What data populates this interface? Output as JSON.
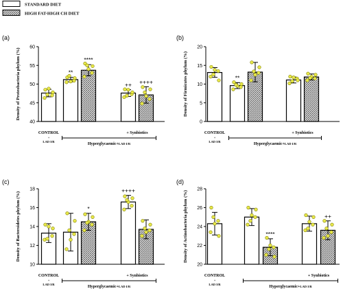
{
  "legend": {
    "items": [
      {
        "label": "STANDARD DIET",
        "pattern": "plain"
      },
      {
        "label": "HIGH FAT-HIGH CH DIET",
        "pattern": "hatch"
      }
    ]
  },
  "group_labels": {
    "control_line1": "CONTROL",
    "control_plus": "+",
    "control_line2": "LAD I/R",
    "hyper": "Hyperglycaemic+",
    "hyper_suffix": "LAD I/R",
    "synbiotics": "+ Synbiotics"
  },
  "colors": {
    "bar_fill": "#ffffff",
    "bar_stroke": "#000000",
    "hatch": "#444444",
    "dot_fill": "#e8e84a",
    "dot_stroke": "#808000"
  },
  "chart_data": [
    {
      "panel": "(a)",
      "type": "bar",
      "ylabel": "Density of Proteobacteria phylum (%)",
      "ylim": [
        40,
        60
      ],
      "yticks": [
        40,
        45,
        50,
        55,
        60
      ],
      "bars": [
        {
          "diet": "standard",
          "value": 47.6,
          "error": 1.0,
          "sig": ""
        },
        {
          "diet": "standard",
          "value": 51.2,
          "error": 0.6,
          "sig": "**"
        },
        {
          "diet": "high_fat",
          "value": 53.7,
          "error": 1.5,
          "sig": "****"
        },
        {
          "diet": "standard",
          "value": 47.6,
          "error": 0.9,
          "sig": "++"
        },
        {
          "diet": "high_fat",
          "value": 47.1,
          "error": 2.2,
          "sig": "++++"
        }
      ],
      "points": [
        [
          48.5,
          47.0,
          46.3,
          47.8,
          48.8,
          47.2
        ],
        [
          51.8,
          50.9,
          50.5,
          51.6,
          50.7,
          52.2
        ],
        [
          55.5,
          53.0,
          52.0,
          54.8,
          54.0,
          55.0
        ],
        [
          48.6,
          47.3,
          46.5,
          47.8,
          48.5,
          46.9
        ],
        [
          49.2,
          46.0,
          44.8,
          48.6,
          46.8,
          47.8
        ]
      ]
    },
    {
      "panel": "(b)",
      "type": "bar",
      "ylabel": "Density of Firmicutes phylum (%)",
      "ylim": [
        0,
        20
      ],
      "yticks": [
        0,
        5,
        10,
        15,
        20
      ],
      "bars": [
        {
          "diet": "standard",
          "value": 13.1,
          "error": 1.3,
          "sig": ""
        },
        {
          "diet": "standard",
          "value": 9.6,
          "error": 0.8,
          "sig": "**"
        },
        {
          "diet": "high_fat",
          "value": 13.2,
          "error": 2.6,
          "sig": ""
        },
        {
          "diet": "standard",
          "value": 11.1,
          "error": 0.8,
          "sig": ""
        },
        {
          "diet": "high_fat",
          "value": 11.9,
          "error": 0.8,
          "sig": ""
        }
      ],
      "points": [
        [
          14.6,
          13.5,
          12.0,
          11.0,
          13.8,
          12.6
        ],
        [
          10.5,
          9.2,
          8.6,
          10.0,
          9.5,
          9.8
        ],
        [
          15.8,
          13.0,
          11.0,
          14.5,
          12.5,
          13.4
        ],
        [
          12.0,
          11.5,
          10.2,
          11.0,
          11.8,
          10.8
        ],
        [
          12.8,
          11.5,
          11.0,
          12.5,
          12.0,
          11.6
        ]
      ]
    },
    {
      "panel": "(c)",
      "type": "bar",
      "ylabel": "Density of Bacteroidetes phylum (%)",
      "ylim": [
        10,
        18
      ],
      "yticks": [
        10,
        12,
        14,
        16,
        18
      ],
      "bars": [
        {
          "diet": "standard",
          "value": 13.3,
          "error": 1.0,
          "sig": ""
        },
        {
          "diet": "standard",
          "value": 13.4,
          "error": 2.0,
          "sig": ""
        },
        {
          "diet": "high_fat",
          "value": 14.5,
          "error": 0.9,
          "sig": "*"
        },
        {
          "diet": "standard",
          "value": 16.6,
          "error": 0.7,
          "sig": "++++"
        },
        {
          "diet": "high_fat",
          "value": 13.7,
          "error": 1.0,
          "sig": ""
        }
      ],
      "points": [
        [
          14.2,
          13.0,
          12.6,
          13.8,
          14.0,
          12.7
        ],
        [
          15.4,
          13.2,
          11.6,
          14.6,
          12.6,
          13.6
        ],
        [
          15.3,
          14.2,
          13.6,
          15.0,
          14.5,
          14.4
        ],
        [
          17.2,
          16.2,
          15.8,
          17.0,
          16.6,
          16.8
        ],
        [
          14.6,
          13.6,
          13.0,
          14.2,
          13.4,
          13.8
        ]
      ]
    },
    {
      "panel": "(d)",
      "type": "bar",
      "ylabel": "Density of Actinobacteria phylum (%)",
      "ylim": [
        20,
        28
      ],
      "yticks": [
        20,
        22,
        24,
        26,
        28
      ],
      "bars": [
        {
          "diet": "standard",
          "value": 24.3,
          "error": 1.2,
          "sig": ""
        },
        {
          "diet": "standard",
          "value": 25.0,
          "error": 0.9,
          "sig": ""
        },
        {
          "diet": "high_fat",
          "value": 21.8,
          "error": 0.9,
          "sig": "****"
        },
        {
          "diet": "standard",
          "value": 24.3,
          "error": 0.8,
          "sig": ""
        },
        {
          "diet": "high_fat",
          "value": 23.6,
          "error": 1.0,
          "sig": "++"
        }
      ],
      "points": [
        [
          26.0,
          24.6,
          23.4,
          23.0,
          24.3,
          25.0
        ],
        [
          26.0,
          25.0,
          24.2,
          25.8,
          25.2,
          24.6
        ],
        [
          22.8,
          21.8,
          21.0,
          20.8,
          22.0,
          21.6
        ],
        [
          25.2,
          24.2,
          23.6,
          25.0,
          24.5,
          23.8
        ],
        [
          24.6,
          23.4,
          22.8,
          24.2,
          23.0,
          23.8
        ]
      ]
    }
  ]
}
